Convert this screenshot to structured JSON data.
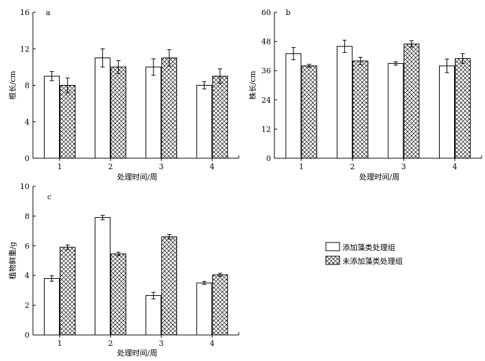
{
  "chart_data": [
    {
      "type": "bar",
      "panel_label": "a",
      "categories": [
        "1",
        "2",
        "3",
        "4"
      ],
      "xlabel": "处理时间/周",
      "ylabel": "根长/cm",
      "ylim": [
        0,
        16
      ],
      "yticks": [
        "0",
        "4",
        "8",
        "12",
        "16"
      ],
      "series": [
        {
          "values": [
            9,
            11,
            10,
            8
          ],
          "errors": [
            0.5,
            1.0,
            0.9,
            0.4
          ],
          "color": "#ffffff",
          "pattern": "none"
        },
        {
          "values": [
            8,
            10,
            11,
            9
          ],
          "errors": [
            0.8,
            0.7,
            0.9,
            0.8
          ],
          "color": "#ffffff",
          "pattern": "crosshatch"
        }
      ]
    },
    {
      "type": "bar",
      "panel_label": "b",
      "categories": [
        "1",
        "2",
        "3",
        "4"
      ],
      "xlabel": "处理时间/周",
      "ylabel": "株长/cm",
      "ylim": [
        0,
        60
      ],
      "yticks": [
        "0",
        "12",
        "24",
        "36",
        "48",
        "60"
      ],
      "series": [
        {
          "values": [
            43,
            46,
            39,
            38
          ],
          "errors": [
            2.5,
            2.5,
            0.7,
            2.8
          ],
          "color": "#ffffff",
          "pattern": "none"
        },
        {
          "values": [
            38,
            40,
            47,
            41
          ],
          "errors": [
            0.6,
            1.5,
            1.3,
            2.0
          ],
          "color": "#ffffff",
          "pattern": "crosshatch"
        }
      ]
    },
    {
      "type": "bar",
      "panel_label": "c",
      "categories": [
        "1",
        "2",
        "3",
        "4"
      ],
      "xlabel": "处理时间/周",
      "ylabel": "植物鲜重/g",
      "ylim": [
        0,
        10
      ],
      "yticks": [
        "0",
        "2",
        "4",
        "6",
        "8",
        "10"
      ],
      "series": [
        {
          "values": [
            3.8,
            7.9,
            2.65,
            3.5
          ],
          "errors": [
            0.18,
            0.15,
            0.22,
            0.1
          ],
          "color": "#ffffff",
          "pattern": "none"
        },
        {
          "values": [
            5.9,
            5.45,
            6.6,
            4.05
          ],
          "errors": [
            0.15,
            0.12,
            0.15,
            0.1
          ],
          "color": "#ffffff",
          "pattern": "crosshatch"
        }
      ]
    }
  ],
  "legend": {
    "placement": "right",
    "items": [
      {
        "label": "添加藻类处理组",
        "pattern": "none"
      },
      {
        "label": "未添加藻类处理组",
        "pattern": "crosshatch"
      }
    ]
  }
}
